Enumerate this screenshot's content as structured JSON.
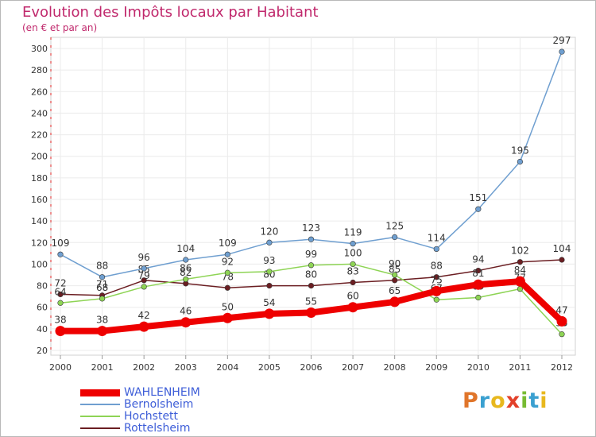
{
  "chart_data": {
    "type": "line",
    "title": "Evolution des Impôts locaux par Habitant",
    "subtitle": "(en € et par an)",
    "x": [
      "2000",
      "2001",
      "2002",
      "2003",
      "2004",
      "2005",
      "2006",
      "2007",
      "2008",
      "2009",
      "2010",
      "2011",
      "2012"
    ],
    "yticks": [
      "20",
      "40",
      "60",
      "80",
      "100",
      "120",
      "140",
      "160",
      "180",
      "200",
      "220",
      "240",
      "260",
      "280",
      "300"
    ],
    "ylim": [
      20,
      300
    ],
    "series": [
      {
        "name": "Rottelsheim",
        "color": "#6b1e22",
        "values": [
          72,
          71,
          85,
          82,
          78,
          80,
          80,
          83,
          85,
          88,
          94,
          102,
          104
        ],
        "labels": [
          "72",
          "71",
          "85",
          "82",
          "78",
          "80",
          "80",
          "83",
          "85",
          "88",
          "94",
          "102",
          "104"
        ]
      },
      {
        "name": "Hochstett",
        "color": "#8ed455",
        "values": [
          64,
          68,
          79,
          86,
          92,
          93,
          99,
          100,
          90,
          67,
          69,
          77,
          35
        ],
        "labels": [
          "64",
          "68",
          "79",
          "86",
          "92",
          "93",
          "99",
          "100",
          "90",
          "67",
          "69",
          "77",
          "35"
        ]
      },
      {
        "name": "Bernolsheim",
        "color": "#6f9fd0",
        "values": [
          109,
          88,
          96,
          104,
          109,
          120,
          123,
          119,
          125,
          114,
          151,
          195,
          297
        ],
        "labels": [
          "109",
          "88",
          "96",
          "104",
          "109",
          "120",
          "123",
          "119",
          "125",
          "114",
          "151",
          "195",
          "297"
        ]
      },
      {
        "name": "WAHLENHEIM",
        "color": "#ee0000",
        "values": [
          38,
          38,
          42,
          46,
          50,
          54,
          55,
          60,
          65,
          75,
          81,
          84,
          47
        ],
        "labels": [
          "38",
          "38",
          "42",
          "46",
          "50",
          "54",
          "55",
          "60",
          "65",
          "75",
          "81",
          "84",
          "47"
        ]
      }
    ],
    "legend": [
      "WAHLENHEIM",
      "Bernolsheim",
      "Hochstett",
      "Rottelsheim"
    ]
  },
  "branding": {
    "logo": [
      "P",
      "r",
      "o",
      "x",
      "i",
      "t",
      "i"
    ],
    "logo_colors": [
      "#e0752a",
      "#3aa0d0",
      "#e8b81e",
      "#e2402a",
      "#77bb33",
      "#3aa0d0",
      "#e8b81e"
    ]
  }
}
